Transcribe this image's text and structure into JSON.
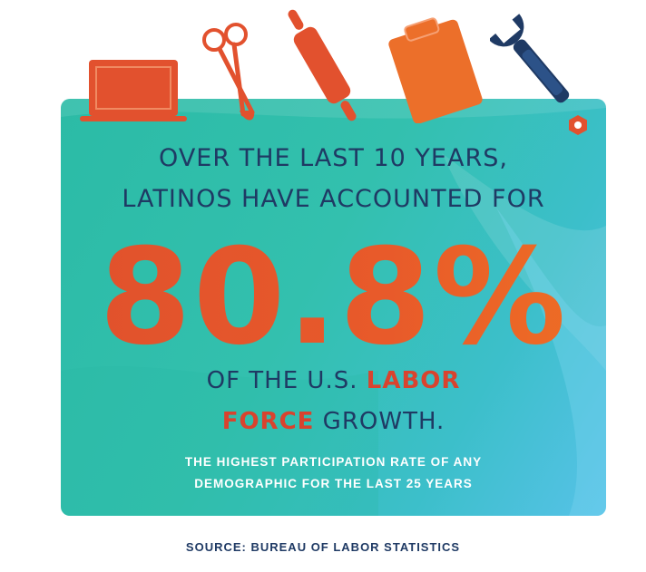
{
  "headline": {
    "line1": "OVER THE LAST 10 YEARS,",
    "line2": "LATINOS HAVE ACCOUNTED FOR"
  },
  "stat": {
    "value": "80.8%"
  },
  "tagline": {
    "part1": "OF THE U.S. ",
    "highlight1": "LABOR",
    "highlight2": "FORCE",
    "part2": " GROWTH."
  },
  "subtext": {
    "line1": "THE HIGHEST PARTICIPATION RATE OF ANY",
    "line2": "DEMOGRAPHIC FOR THE LAST 25 YEARS"
  },
  "source": "SOURCE: BUREAU OF LABOR STATISTICS",
  "icons": [
    "laptop-icon",
    "scissors-icon",
    "rolling-pin-icon",
    "clipboard-icon",
    "wrench-icon",
    "nut-icon"
  ],
  "colors": {
    "orange": "#e8572b",
    "navy": "#1f3a64",
    "teal": "#2bbba6",
    "sky": "#57c2e8",
    "accent_red": "#d9432e"
  }
}
